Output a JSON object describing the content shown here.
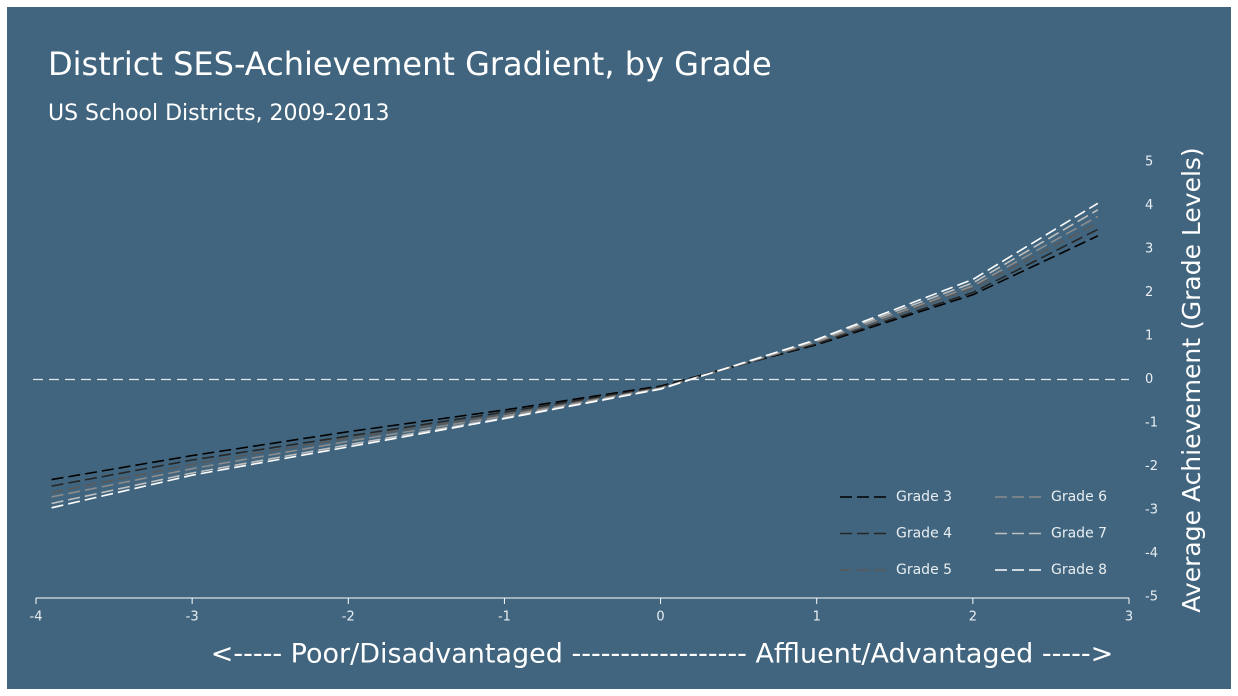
{
  "chart_data": {
    "type": "line",
    "title": "District SES-Achievement Gradient, by Grade",
    "subtitle": "US School Districts, 2009-2013",
    "x_label": "<----- Poor/Disadvantaged ------------------ Affluent/Advantaged ----->",
    "y_label": "Average Achievement (Grade Levels)",
    "x": [
      -3.9,
      -3,
      -2,
      -1,
      0,
      1,
      2,
      2.8
    ],
    "series": [
      {
        "name": "Grade 3",
        "color": "#000000",
        "values": [
          -2.3,
          -1.75,
          -1.2,
          -0.7,
          -0.15,
          0.8,
          1.95,
          3.3
        ]
      },
      {
        "name": "Grade 4",
        "color": "#262626",
        "values": [
          -2.45,
          -1.85,
          -1.3,
          -0.75,
          -0.17,
          0.82,
          2.0,
          3.45
        ]
      },
      {
        "name": "Grade 5",
        "color": "#595959",
        "values": [
          -2.6,
          -1.95,
          -1.35,
          -0.8,
          -0.19,
          0.85,
          2.1,
          3.6
        ]
      },
      {
        "name": "Grade 6",
        "color": "#8c8c8c",
        "values": [
          -2.7,
          -2.05,
          -1.42,
          -0.84,
          -0.2,
          0.87,
          2.15,
          3.75
        ]
      },
      {
        "name": "Grade 7",
        "color": "#bfbfbf",
        "values": [
          -2.85,
          -2.15,
          -1.5,
          -0.88,
          -0.21,
          0.9,
          2.22,
          3.9
        ]
      },
      {
        "name": "Grade 8",
        "color": "#ffffff",
        "values": [
          -2.95,
          -2.2,
          -1.55,
          -0.9,
          -0.22,
          0.92,
          2.3,
          4.05
        ]
      }
    ],
    "xlim": [
      -4,
      3
    ],
    "xticks": [
      -4,
      -3,
      -2,
      -1,
      0,
      1,
      2,
      3
    ],
    "ylim": [
      -5,
      5
    ],
    "yticks": [
      -5,
      -4,
      -3,
      -2,
      -1,
      0,
      1,
      2,
      3,
      4,
      5
    ],
    "zero_line": true,
    "legend": "lower right",
    "background": "#41657e"
  }
}
